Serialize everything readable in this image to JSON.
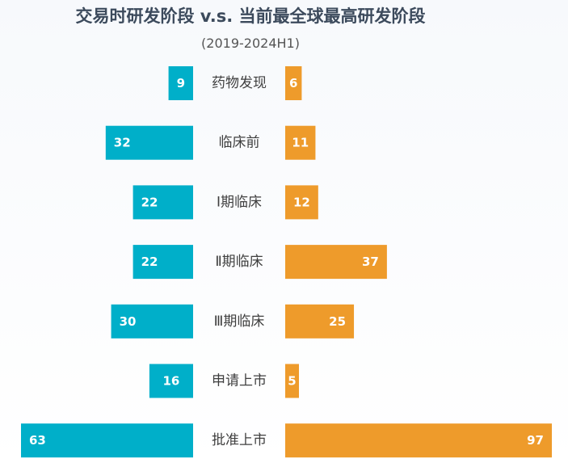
{
  "chart_data": {
    "type": "bar",
    "title": "交易时研发阶段 v.s. 当前最全球最高研发阶段",
    "subtitle": "(2019-2024H1)",
    "categories": [
      "药物发现",
      "临床前",
      "Ⅰ期临床",
      "Ⅱ期临床",
      "Ⅲ期临床",
      "申请上市",
      "批准上市"
    ],
    "series": [
      {
        "values": [
          9,
          32,
          22,
          22,
          30,
          16,
          63
        ],
        "color": "#00afc9",
        "side": "left"
      },
      {
        "values": [
          6,
          11,
          12,
          37,
          25,
          5,
          97
        ],
        "color": "#ee9b2b",
        "side": "right"
      }
    ],
    "xlabel": "",
    "ylabel": "",
    "grid": false
  }
}
